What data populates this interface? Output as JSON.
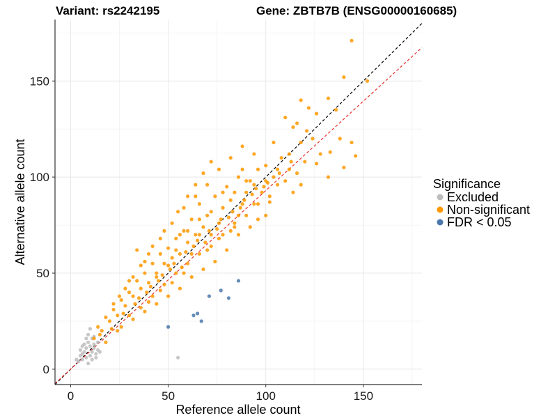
{
  "header": {
    "variant_text": "Variant: rs2242195",
    "gene_text": "Gene: ZBTB7B (ENSG00000160685)"
  },
  "legend": {
    "title": "Significance",
    "items": [
      {
        "label": "Excluded",
        "color": "#bdbdbd"
      },
      {
        "label": "Non-significant",
        "color": "#ff9800"
      },
      {
        "label": "FDR < 0.05",
        "color": "#4a78ab"
      }
    ]
  },
  "chart_data": {
    "type": "scatter",
    "xlabel": "Reference allele count",
    "ylabel": "Alternative allele count",
    "xlim": [
      -8,
      180
    ],
    "ylim": [
      -8,
      182
    ],
    "xticks": [
      0,
      50,
      100,
      150
    ],
    "yticks": [
      0,
      50,
      100,
      150
    ],
    "grid": true,
    "legend_position": "right",
    "reference_lines": [
      {
        "name": "identity",
        "slope": 1.0,
        "color": "#000000",
        "style": "dashed"
      },
      {
        "name": "fit",
        "slope": 0.93,
        "color": "#e8302a",
        "style": "dashed"
      }
    ],
    "series": [
      {
        "color": "#bdbdbd",
        "points": [
          [
            3,
            5
          ],
          [
            5,
            7
          ],
          [
            6,
            5
          ],
          [
            7,
            9
          ],
          [
            8,
            11
          ],
          [
            6,
            8
          ],
          [
            9,
            14
          ],
          [
            10,
            12
          ],
          [
            11,
            9
          ],
          [
            12,
            13
          ],
          [
            4,
            4
          ],
          [
            8,
            6
          ],
          [
            10,
            7
          ],
          [
            13,
            8
          ],
          [
            9,
            18
          ],
          [
            11,
            16
          ],
          [
            7,
            13
          ],
          [
            10,
            21
          ],
          [
            12,
            17
          ],
          [
            14,
            10
          ],
          [
            5,
            10
          ],
          [
            6,
            12
          ],
          [
            13,
            6
          ],
          [
            15,
            9
          ],
          [
            11,
            5
          ],
          [
            9,
            3
          ],
          [
            12,
            11
          ],
          [
            8,
            16
          ],
          [
            14,
            14
          ],
          [
            55,
            6
          ]
        ]
      },
      {
        "color": "#ff9800",
        "points": [
          [
            144,
            171
          ],
          [
            140,
            152
          ],
          [
            152,
            150
          ],
          [
            132,
            141
          ],
          [
            118,
            140
          ],
          [
            136,
            135
          ],
          [
            126,
            133
          ],
          [
            116,
            128
          ],
          [
            110,
            131
          ],
          [
            114,
            126
          ],
          [
            121,
            124
          ],
          [
            138,
            120
          ],
          [
            144,
            118
          ],
          [
            128,
            112
          ],
          [
            146,
            111
          ],
          [
            133,
            113
          ],
          [
            140,
            105
          ],
          [
            132,
            100
          ],
          [
            126,
            107
          ],
          [
            120,
            108
          ],
          [
            116,
            102
          ],
          [
            108,
            110
          ],
          [
            112,
            104
          ],
          [
            104,
            100
          ],
          [
            100,
            106
          ],
          [
            96,
            104
          ],
          [
            92,
            98
          ],
          [
            88,
            104
          ],
          [
            98,
            92
          ],
          [
            102,
            87
          ],
          [
            94,
            86
          ],
          [
            90,
            92
          ],
          [
            86,
            80
          ],
          [
            82,
            88
          ],
          [
            80,
            95
          ],
          [
            84,
            74
          ],
          [
            78,
            84
          ],
          [
            76,
            76
          ],
          [
            74,
            90
          ],
          [
            72,
            70
          ],
          [
            70,
            80
          ],
          [
            68,
            74
          ],
          [
            66,
            86
          ],
          [
            64,
            70
          ],
          [
            62,
            78
          ],
          [
            60,
            66
          ],
          [
            58,
            72
          ],
          [
            56,
            60
          ],
          [
            54,
            68
          ],
          [
            52,
            58
          ],
          [
            50,
            63
          ],
          [
            48,
            55
          ],
          [
            46,
            60
          ],
          [
            44,
            50
          ],
          [
            42,
            55
          ],
          [
            40,
            45
          ],
          [
            38,
            50
          ],
          [
            36,
            42
          ],
          [
            34,
            46
          ],
          [
            32,
            38
          ],
          [
            30,
            40
          ],
          [
            28,
            33
          ],
          [
            26,
            36
          ],
          [
            24,
            28
          ],
          [
            22,
            31
          ],
          [
            20,
            25
          ],
          [
            18,
            27
          ],
          [
            16,
            20
          ],
          [
            14,
            22
          ],
          [
            12,
            16
          ],
          [
            18,
            14
          ],
          [
            24,
            20
          ],
          [
            30,
            28
          ],
          [
            36,
            32
          ],
          [
            42,
            38
          ],
          [
            48,
            44
          ],
          [
            54,
            50
          ],
          [
            60,
            55
          ],
          [
            66,
            60
          ],
          [
            72,
            64
          ],
          [
            78,
            70
          ],
          [
            84,
            76
          ],
          [
            90,
            80
          ],
          [
            96,
            86
          ],
          [
            102,
            90
          ],
          [
            106,
            96
          ],
          [
            110,
            98
          ],
          [
            114,
            92
          ],
          [
            118,
            96
          ],
          [
            100,
            80
          ],
          [
            92,
            74
          ],
          [
            86,
            70
          ],
          [
            80,
            62
          ],
          [
            74,
            56
          ],
          [
            68,
            52
          ],
          [
            62,
            48
          ],
          [
            56,
            42
          ],
          [
            50,
            38
          ],
          [
            44,
            34
          ],
          [
            38,
            30
          ],
          [
            32,
            26
          ],
          [
            26,
            22
          ],
          [
            40,
            60
          ],
          [
            46,
            68
          ],
          [
            52,
            76
          ],
          [
            58,
            84
          ],
          [
            64,
            90
          ],
          [
            70,
            96
          ],
          [
            76,
            104
          ],
          [
            82,
            110
          ],
          [
            88,
            116
          ],
          [
            60,
            90
          ],
          [
            64,
            96
          ],
          [
            55,
            82
          ],
          [
            48,
            72
          ],
          [
            42,
            64
          ],
          [
            36,
            54
          ],
          [
            30,
            46
          ],
          [
            25,
            38
          ],
          [
            68,
            102
          ],
          [
            72,
            108
          ],
          [
            86,
            100
          ],
          [
            94,
            112
          ],
          [
            104,
            118
          ],
          [
            122,
            136
          ],
          [
            34,
            62
          ],
          [
            57,
            53
          ],
          [
            63,
            64
          ],
          [
            45,
            46
          ],
          [
            51,
            52
          ],
          [
            39,
            40
          ],
          [
            33,
            34
          ],
          [
            69,
            66
          ],
          [
            75,
            73
          ],
          [
            81,
            79
          ],
          [
            87,
            84
          ],
          [
            93,
            91
          ],
          [
            99,
            95
          ],
          [
            27,
            29
          ],
          [
            21,
            21
          ],
          [
            15,
            18
          ],
          [
            35,
            37
          ],
          [
            41,
            43
          ],
          [
            47,
            49
          ],
          [
            53,
            55
          ],
          [
            59,
            61
          ],
          [
            65,
            67
          ],
          [
            71,
            72
          ],
          [
            77,
            78
          ],
          [
            83,
            82
          ],
          [
            89,
            88
          ],
          [
            95,
            94
          ],
          [
            101,
            97
          ],
          [
            107,
            102
          ],
          [
            113,
            108
          ],
          [
            56,
            70
          ],
          [
            62,
            60
          ],
          [
            58,
            50
          ],
          [
            52,
            45
          ],
          [
            46,
            41
          ],
          [
            40,
            35
          ],
          [
            66,
            78
          ],
          [
            70,
            62
          ],
          [
            76,
            68
          ],
          [
            84,
            92
          ],
          [
            90,
            98
          ],
          [
            96,
            78
          ],
          [
            28,
            42
          ],
          [
            22,
            34
          ],
          [
            32,
            48
          ],
          [
            38,
            56
          ],
          [
            44,
            48
          ],
          [
            50,
            54
          ],
          [
            54,
            62
          ],
          [
            60,
            72
          ],
          [
            66,
            70
          ],
          [
            72,
            82
          ],
          [
            78,
            92
          ],
          [
            82,
            72
          ],
          [
            88,
            86
          ],
          [
            94,
            96
          ],
          [
            100,
            98
          ],
          [
            106,
            104
          ],
          [
            112,
            112
          ],
          [
            118,
            118
          ],
          [
            124,
            120
          ]
        ]
      },
      {
        "color": "#4a78ab",
        "points": [
          [
            86,
            46
          ],
          [
            81,
            37
          ],
          [
            77,
            41
          ],
          [
            71,
            38
          ],
          [
            65,
            29
          ],
          [
            67,
            25
          ],
          [
            63,
            28
          ],
          [
            50,
            22
          ]
        ]
      }
    ]
  }
}
